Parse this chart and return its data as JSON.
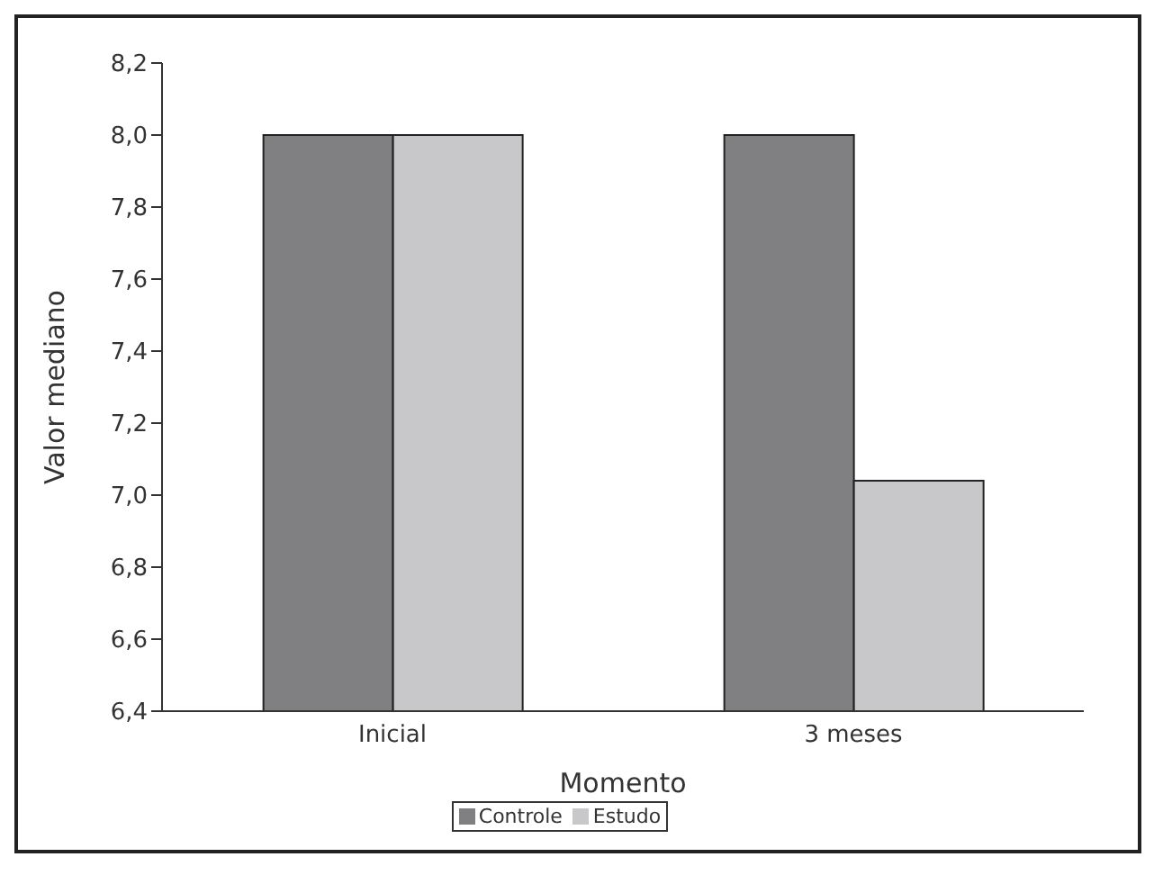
{
  "chart_data": {
    "type": "bar",
    "xlabel": "Momento",
    "ylabel": "Valor mediano",
    "categories": [
      "Inicial",
      "3 meses"
    ],
    "series": [
      {
        "name": "Controle",
        "color": "#808083",
        "values": [
          8.0,
          8.0
        ]
      },
      {
        "name": "Estudo",
        "color": "#c8c8ca",
        "values": [
          8.0,
          7.04
        ]
      }
    ],
    "ylim": [
      6.4,
      8.2
    ],
    "yticks": [
      {
        "value": 6.4,
        "label": "6,4"
      },
      {
        "value": 6.6,
        "label": "6,6"
      },
      {
        "value": 6.8,
        "label": "6,8"
      },
      {
        "value": 7.0,
        "label": "7,0"
      },
      {
        "value": 7.2,
        "label": "7,2"
      },
      {
        "value": 7.4,
        "label": "7,4"
      },
      {
        "value": 7.6,
        "label": "7,6"
      },
      {
        "value": 7.8,
        "label": "7,8"
      },
      {
        "value": 8.0,
        "label": "8,0"
      },
      {
        "value": 8.2,
        "label": "8,2"
      }
    ],
    "grid": false,
    "legend": "bottom"
  }
}
